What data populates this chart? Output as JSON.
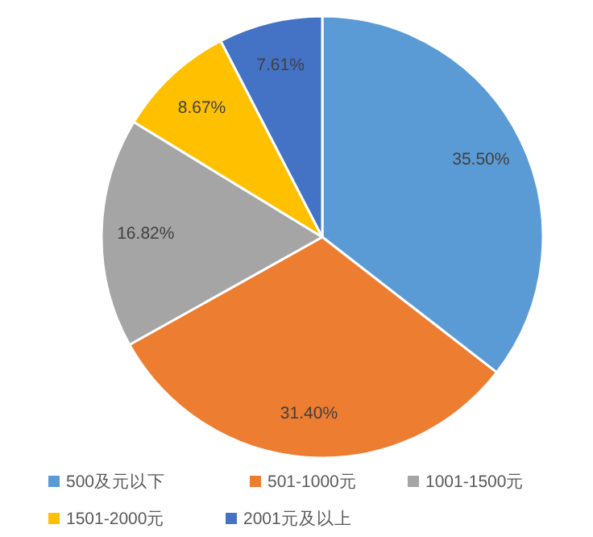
{
  "chart_data": {
    "type": "pie",
    "categories": [
      "500及元以下",
      "501-1000元",
      "1001-1500元",
      "1501-2000元",
      "2001元及以上"
    ],
    "values": [
      35.5,
      31.4,
      16.82,
      8.67,
      7.61
    ],
    "value_labels": [
      "35.50%",
      "31.40%",
      "16.82%",
      "8.67%",
      "7.61%"
    ],
    "colors": [
      "#5b9bd5",
      "#ed7d31",
      "#a5a5a5",
      "#ffc000",
      "#4472c4"
    ],
    "legend": "bottom"
  }
}
